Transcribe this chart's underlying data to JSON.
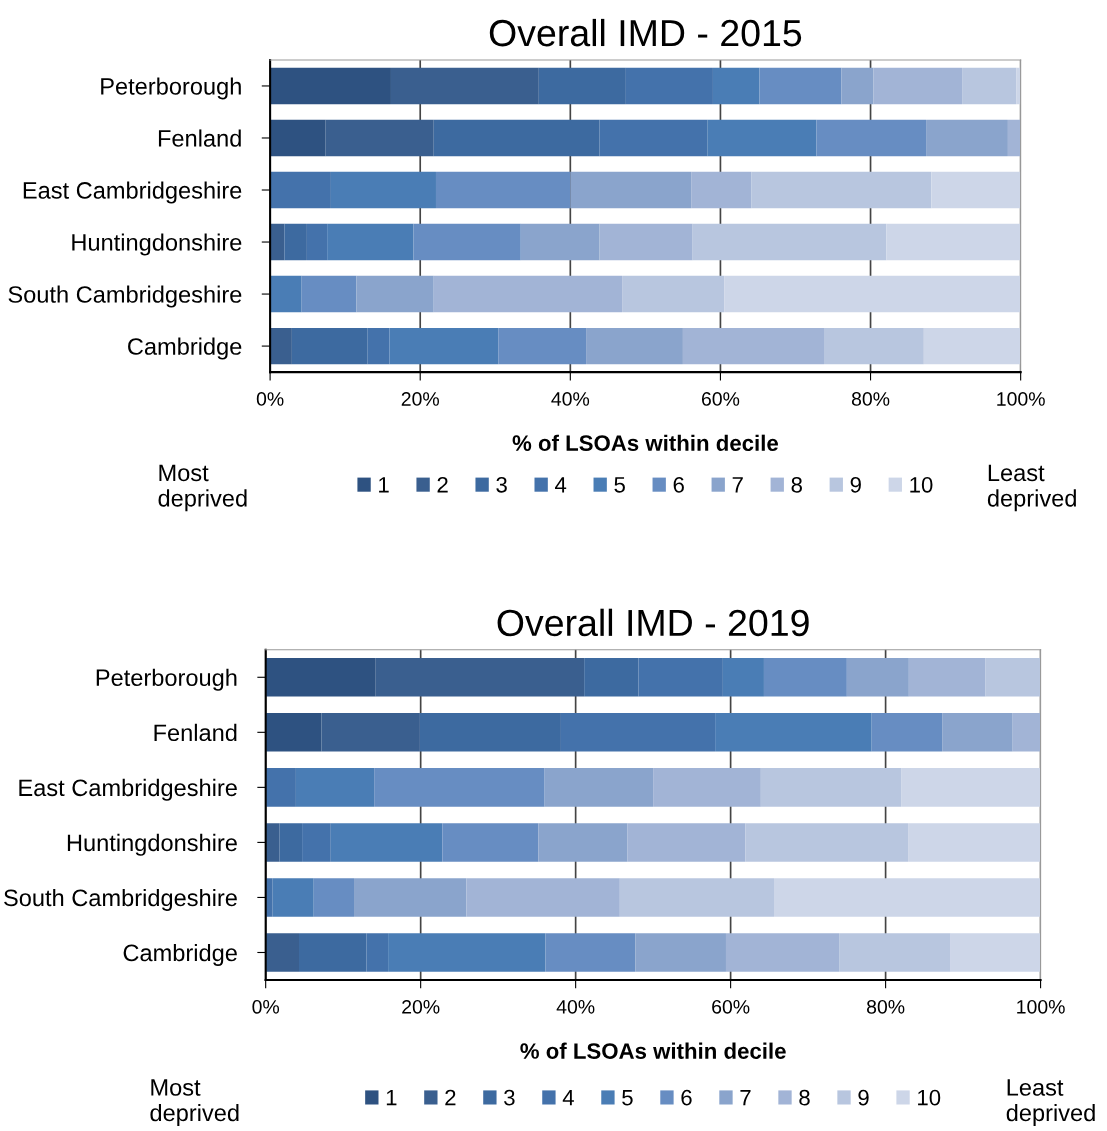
{
  "chart_data": [
    {
      "type": "bar",
      "orientation": "horizontal",
      "stacked": true,
      "title": "Overall IMD - 2015",
      "xlabel": "% of LSOAs within decile",
      "categories": [
        "Peterborough",
        "Fenland",
        "East Cambridgeshire",
        "Huntingdonshire",
        "South Cambridgeshire",
        "Cambridge"
      ],
      "xlim": [
        0,
        100
      ],
      "xticks": [
        {
          "value": 0,
          "label": "0%"
        },
        {
          "value": 20,
          "label": "20%"
        },
        {
          "value": 40,
          "label": "40%"
        },
        {
          "value": 60,
          "label": "60%"
        },
        {
          "value": 80,
          "label": "80%"
        },
        {
          "value": 100,
          "label": "100%"
        }
      ],
      "grid": "x",
      "legend": "bottom",
      "annotations": [
        "Most\ndeprived",
        "Least\ndeprived"
      ],
      "series": [
        {
          "name": "1",
          "color": "#2e5281",
          "values": [
            16.1,
            7.4,
            0,
            0,
            0,
            0
          ]
        },
        {
          "name": "2",
          "color": "#3a5f8f",
          "values": [
            19.7,
            14.4,
            0,
            1.9,
            0,
            2.9
          ]
        },
        {
          "name": "3",
          "color": "#3d6aa0",
          "values": [
            11.6,
            22.1,
            0,
            3.0,
            0,
            10.1
          ]
        },
        {
          "name": "4",
          "color": "#4472ab",
          "values": [
            11.6,
            14.4,
            8.1,
            2.7,
            0,
            2.9
          ]
        },
        {
          "name": "5",
          "color": "#4a7db5",
          "values": [
            6.2,
            14.5,
            14.0,
            11.5,
            4.2,
            14.5
          ]
        },
        {
          "name": "6",
          "color": "#678dc2",
          "values": [
            10.9,
            14.6,
            17.9,
            14.3,
            7.3,
            11.7
          ]
        },
        {
          "name": "7",
          "color": "#8aa4cc",
          "values": [
            4.3,
            10.9,
            16.1,
            10.5,
            10.3,
            12.9
          ]
        },
        {
          "name": "8",
          "color": "#a2b4d6",
          "values": [
            11.8,
            1.7,
            8.0,
            12.4,
            25.1,
            18.8
          ]
        },
        {
          "name": "9",
          "color": "#b8c6df",
          "values": [
            7.2,
            0,
            24.0,
            25.8,
            13.6,
            13.3
          ]
        },
        {
          "name": "10",
          "color": "#cdd6e8",
          "values": [
            0.6,
            0,
            11.9,
            17.9,
            39.5,
            12.9
          ]
        }
      ]
    },
    {
      "type": "bar",
      "orientation": "horizontal",
      "stacked": true,
      "title": "Overall IMD - 2019",
      "xlabel": "% of LSOAs within decile",
      "categories": [
        "Peterborough",
        "Fenland",
        "East Cambridgeshire",
        "Huntingdonshire",
        "South Cambridgeshire",
        "Cambridge"
      ],
      "xlim": [
        0,
        100
      ],
      "xticks": [
        {
          "value": 0,
          "label": "0%"
        },
        {
          "value": 20,
          "label": "20%"
        },
        {
          "value": 40,
          "label": "40%"
        },
        {
          "value": 60,
          "label": "60%"
        },
        {
          "value": 80,
          "label": "80%"
        },
        {
          "value": 100,
          "label": "100%"
        }
      ],
      "grid": "x",
      "legend": "bottom",
      "annotations": [
        "Most\ndeprived",
        "Least\ndeprived"
      ],
      "series": [
        {
          "name": "1",
          "color": "#2e5281",
          "values": [
            14.2,
            7.2,
            0,
            0,
            0,
            0
          ]
        },
        {
          "name": "2",
          "color": "#3a5f8f",
          "values": [
            26.9,
            12.7,
            0,
            1.8,
            0,
            4.3
          ]
        },
        {
          "name": "3",
          "color": "#3d6aa0",
          "values": [
            7.0,
            18.2,
            0,
            2.9,
            0,
            8.7
          ]
        },
        {
          "name": "4",
          "color": "#4472ab",
          "values": [
            10.9,
            19.9,
            3.9,
            3.7,
            0.9,
            2.8
          ]
        },
        {
          "name": "5",
          "color": "#4a7db5",
          "values": [
            5.3,
            20.2,
            10.1,
            14.4,
            5.3,
            20.3
          ]
        },
        {
          "name": "6",
          "color": "#678dc2",
          "values": [
            10.7,
            9.1,
            22.0,
            12.4,
            5.2,
            11.6
          ]
        },
        {
          "name": "7",
          "color": "#8aa4cc",
          "values": [
            8.0,
            9.1,
            14.0,
            11.5,
            14.5,
            11.7
          ]
        },
        {
          "name": "8",
          "color": "#a2b4d6",
          "values": [
            9.9,
            3.6,
            13.9,
            15.2,
            19.8,
            14.6
          ]
        },
        {
          "name": "9",
          "color": "#b8c6df",
          "values": [
            7.1,
            0,
            18.1,
            21.0,
            19.9,
            14.4
          ]
        },
        {
          "name": "10",
          "color": "#cdd6e8",
          "values": [
            0,
            0,
            18.0,
            17.1,
            34.4,
            11.6
          ]
        }
      ]
    }
  ]
}
